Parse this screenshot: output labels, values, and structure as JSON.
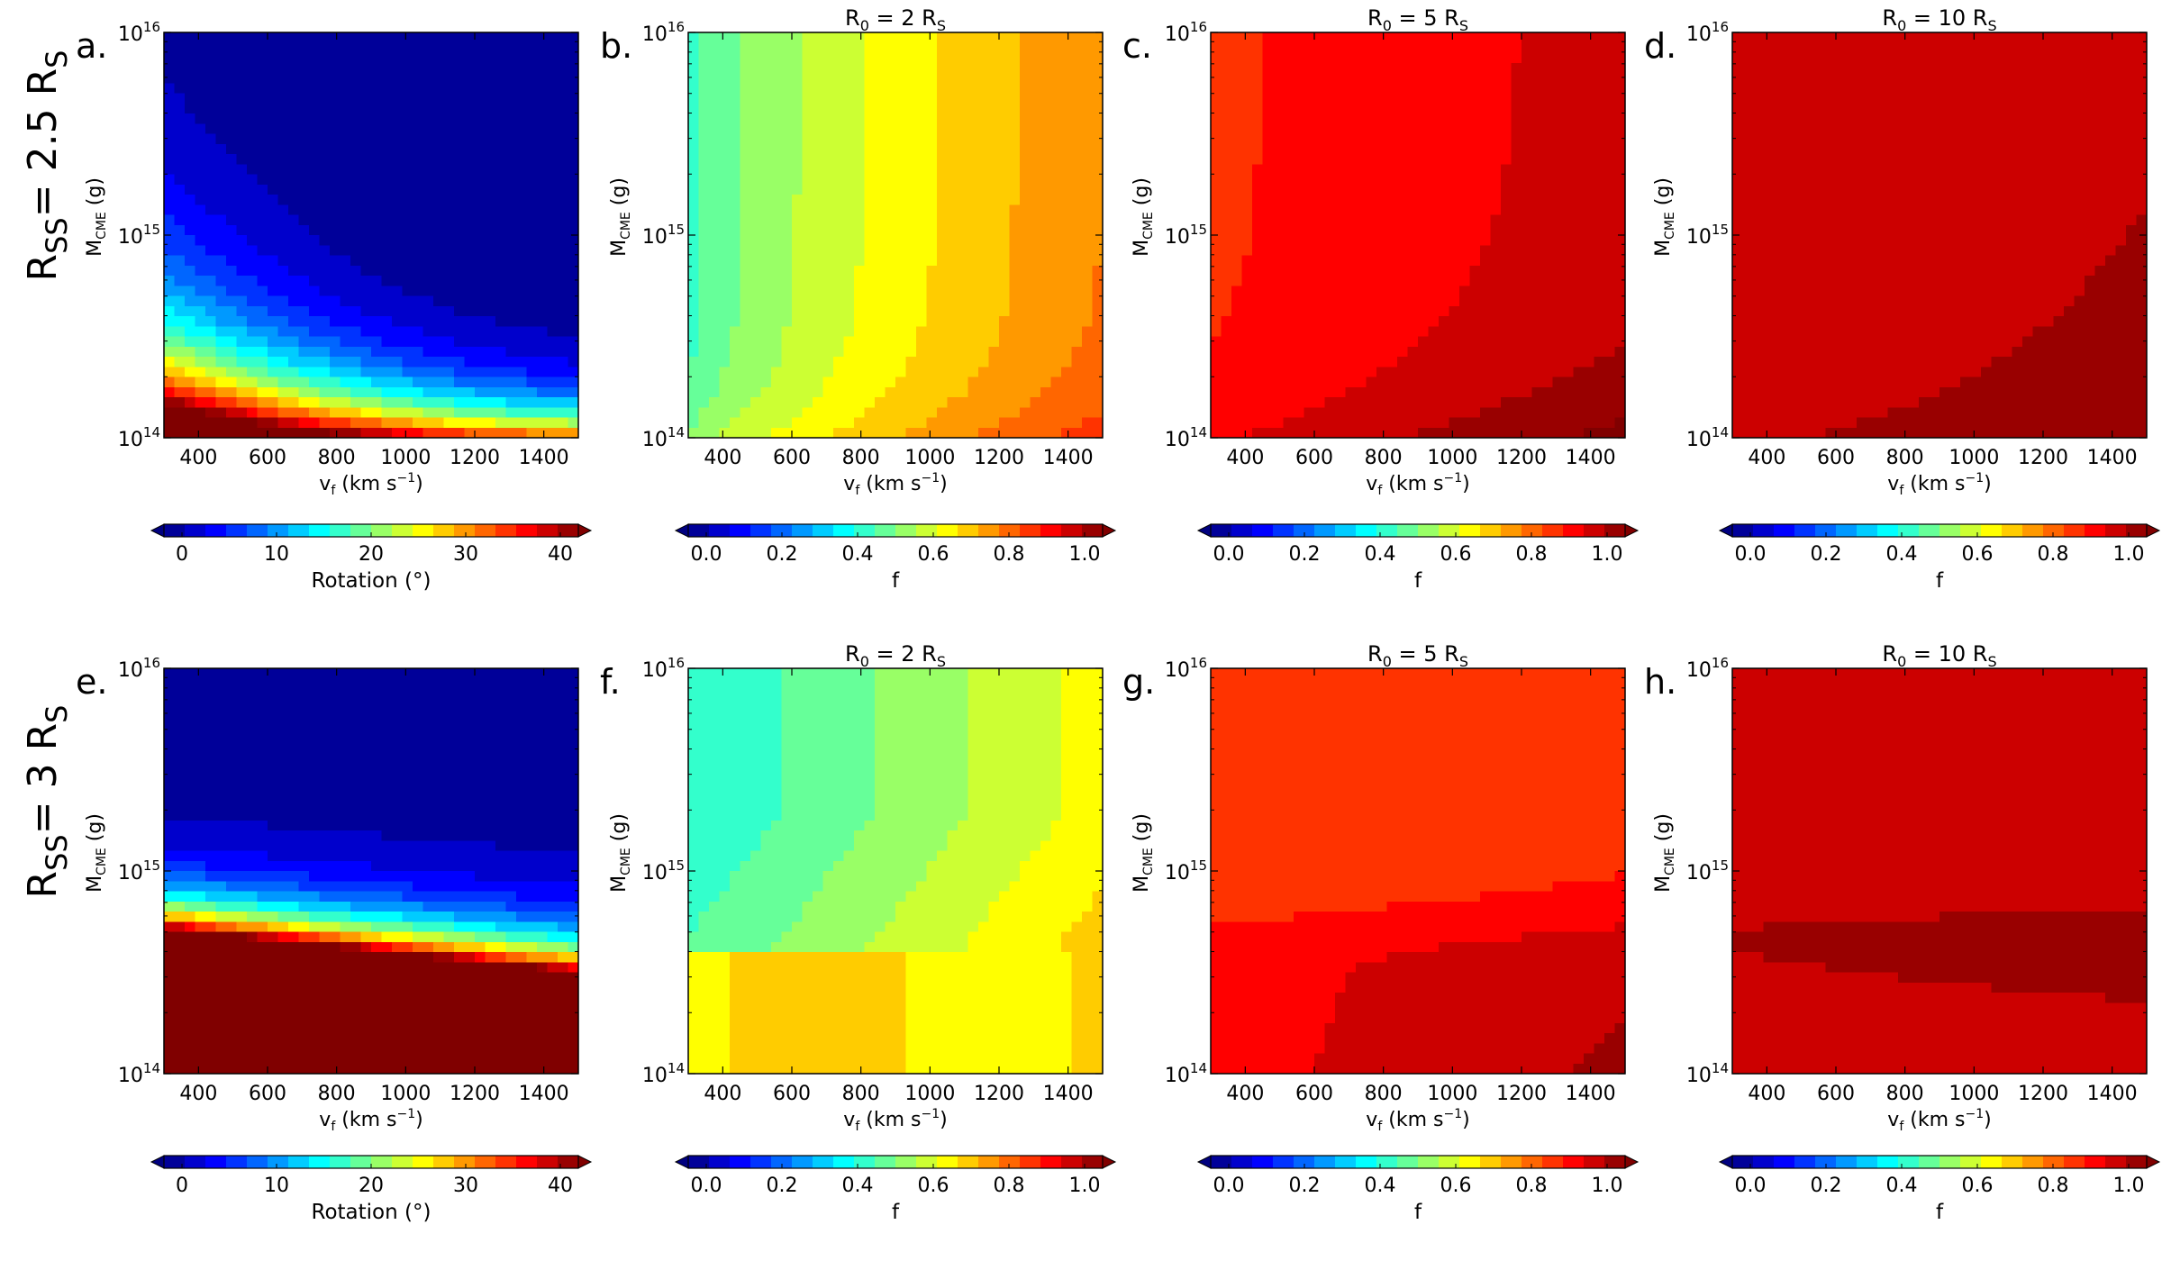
{
  "row_labels": [
    {
      "main": "R",
      "sub": "SS",
      "rest": "= 2.5 R",
      "sub2": "S"
    },
    {
      "main": "R",
      "sub": "SS",
      "rest": "= 3 R",
      "sub2": "S"
    }
  ],
  "axis_text": {
    "xlabel_main": "v",
    "xlabel_sub": "f",
    "xlabel_rest": " (km s",
    "xlabel_exp": "−1",
    "xlabel_end": ")",
    "ylabel_main": "M",
    "ylabel_sub": "CME",
    "ylabel_rest": " (g)",
    "ytick_base": "10"
  },
  "chart_data": [
    {
      "type": "heatmap",
      "panel": "a.",
      "title": "",
      "colorbar": "rotation",
      "row": 0,
      "col": 0,
      "xlim": [
        300,
        1500
      ],
      "ylim_log10": [
        14,
        16
      ],
      "xticks": [
        400,
        600,
        800,
        1000,
        1200,
        1400
      ],
      "yticks_exp": [
        "14",
        "15",
        "16"
      ],
      "field": "rot_r25",
      "z_label": "Rotation (°)",
      "z_range": [
        0,
        40
      ]
    },
    {
      "type": "heatmap",
      "panel": "b.",
      "title": {
        "a": "R",
        "b": "0",
        "c": " = 2 R",
        "d": "S"
      },
      "colorbar": "f",
      "row": 0,
      "col": 1,
      "xlim": [
        300,
        1500
      ],
      "ylim_log10": [
        14,
        16
      ],
      "xticks": [
        400,
        600,
        800,
        1000,
        1200,
        1400
      ],
      "yticks_exp": [
        "14",
        "15",
        "16"
      ],
      "field": "f_r25_2",
      "z_label": "f",
      "z_range": [
        0,
        1
      ]
    },
    {
      "type": "heatmap",
      "panel": "c.",
      "title": {
        "a": "R",
        "b": "0",
        "c": " = 5 R",
        "d": "S"
      },
      "colorbar": "f",
      "row": 0,
      "col": 2,
      "xlim": [
        300,
        1500
      ],
      "ylim_log10": [
        14,
        16
      ],
      "xticks": [
        400,
        600,
        800,
        1000,
        1200,
        1400
      ],
      "yticks_exp": [
        "14",
        "15",
        "16"
      ],
      "field": "f_r25_5",
      "z_label": "f",
      "z_range": [
        0,
        1
      ]
    },
    {
      "type": "heatmap",
      "panel": "d.",
      "title": {
        "a": "R",
        "b": "0",
        "c": " = 10 R",
        "d": "S"
      },
      "colorbar": "f",
      "row": 0,
      "col": 3,
      "xlim": [
        300,
        1500
      ],
      "ylim_log10": [
        14,
        16
      ],
      "xticks": [
        400,
        600,
        800,
        1000,
        1200,
        1400
      ],
      "yticks_exp": [
        "14",
        "15",
        "16"
      ],
      "field": "f_r25_10",
      "z_label": "f",
      "z_range": [
        0,
        1
      ]
    },
    {
      "type": "heatmap",
      "panel": "e.",
      "title": "",
      "colorbar": "rotation",
      "row": 1,
      "col": 0,
      "xlim": [
        300,
        1500
      ],
      "ylim_log10": [
        14,
        16
      ],
      "xticks": [
        400,
        600,
        800,
        1000,
        1200,
        1400
      ],
      "yticks_exp": [
        "14",
        "15",
        "16"
      ],
      "field": "rot_r3",
      "z_label": "Rotation (°)",
      "z_range": [
        0,
        40
      ]
    },
    {
      "type": "heatmap",
      "panel": "f.",
      "title": {
        "a": "R",
        "b": "0",
        "c": " = 2 R",
        "d": "S"
      },
      "colorbar": "f",
      "row": 1,
      "col": 1,
      "xlim": [
        300,
        1500
      ],
      "ylim_log10": [
        14,
        16
      ],
      "xticks": [
        400,
        600,
        800,
        1000,
        1200,
        1400
      ],
      "yticks_exp": [
        "14",
        "15",
        "16"
      ],
      "field": "f_r3_2",
      "z_label": "f",
      "z_range": [
        0,
        1
      ]
    },
    {
      "type": "heatmap",
      "panel": "g.",
      "title": {
        "a": "R",
        "b": "0",
        "c": " = 5 R",
        "d": "S"
      },
      "colorbar": "f",
      "row": 1,
      "col": 2,
      "xlim": [
        300,
        1500
      ],
      "ylim_log10": [
        14,
        16
      ],
      "xticks": [
        400,
        600,
        800,
        1000,
        1200,
        1400
      ],
      "yticks_exp": [
        "14",
        "15",
        "16"
      ],
      "field": "f_r3_5",
      "z_label": "f",
      "z_range": [
        0,
        1
      ]
    },
    {
      "type": "heatmap",
      "panel": "h.",
      "title": {
        "a": "R",
        "b": "0",
        "c": " = 10 R",
        "d": "S"
      },
      "colorbar": "f",
      "row": 1,
      "col": 3,
      "xlim": [
        300,
        1500
      ],
      "ylim_log10": [
        14,
        16
      ],
      "xticks": [
        400,
        600,
        800,
        1000,
        1200,
        1400
      ],
      "yticks_exp": [
        "14",
        "15",
        "16"
      ],
      "field": "f_r3_10",
      "z_label": "f",
      "z_range": [
        0,
        1
      ]
    }
  ],
  "colorbars": {
    "rotation": {
      "label": "Rotation (°)",
      "range": [
        0,
        40
      ],
      "ticks": [
        "0",
        "10",
        "20",
        "30",
        "40"
      ],
      "extend": "both"
    },
    "f": {
      "label": "f",
      "range": [
        0,
        1
      ],
      "ticks": [
        "0.0",
        "0.2",
        "0.4",
        "0.6",
        "0.8",
        "1.0"
      ],
      "extend": "both"
    }
  }
}
